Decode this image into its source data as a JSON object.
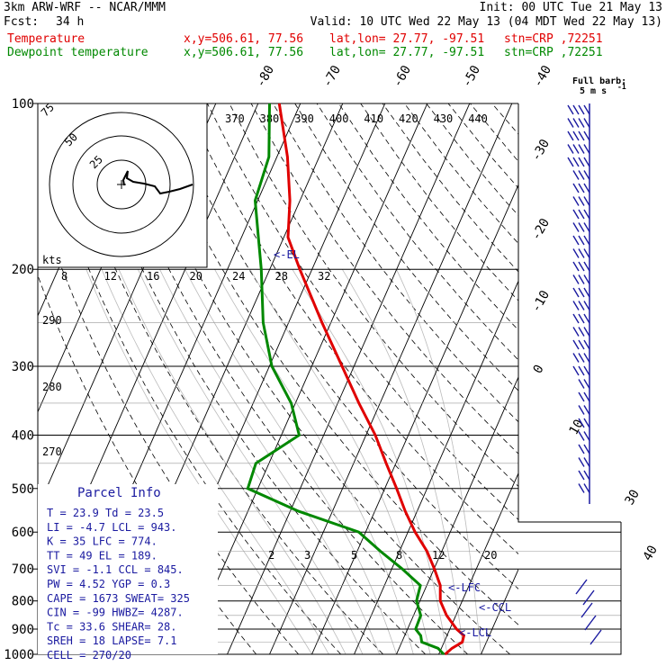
{
  "header": {
    "model": "3km ARW-WRF -- NCAR/MMM",
    "init": "Init: 00 UTC Tue 21 May 13",
    "fcst_label": "Fcst:",
    "fcst_value": "34 h",
    "valid": "Valid: 10 UTC Wed 22 May 13 (04 MDT Wed 22 May 13)",
    "temp_label": "Temperature",
    "dew_label": "Dewpoint temperature",
    "xy": "x,y=506.61, 77.56",
    "latlon": "lat,lon= 27.77, -97.51",
    "stn": "stn=CRP ,72251"
  },
  "barb_legend": {
    "line1": "Full barb:",
    "line2": "5 m s",
    "exp": "-1"
  },
  "hodograph": {
    "kts_label": "kts",
    "ring_labels": [
      "75",
      "50",
      "25"
    ]
  },
  "annotations": {
    "el": "<-EL",
    "lfc": "<-LFC",
    "ccl": "<-CCL",
    "lcl": "<-LCL"
  },
  "parcel_info": {
    "title": "Parcel Info",
    "rows": [
      "T   =   23.9  Td  = 23.5",
      "LI  =   -4.7  LCL =  943.",
      "K   =     35  LFC =  774.",
      "TT  =     49  EL  =  189.",
      "SVI =   -1.1  CCL =  845.",
      "PW  =   4.52  YGP =   0.3",
      "CAPE =  1673  SWEAT=  325",
      "CIN  =   -99  HWBZ= 4287.",
      "Tc  =   33.6  SHEAR=  28.",
      "SREH =    18  LAPSE=  7.1",
      "CELL = 270/20"
    ]
  },
  "chart_data": {
    "type": "line",
    "diagram": "skew-T log-p",
    "pressure_ticks": [
      "100",
      "200",
      "300",
      "400",
      "500",
      "600",
      "700",
      "800",
      "900",
      "1000"
    ],
    "isotherm_labels": [
      "-80",
      "-70",
      "-60",
      "-50",
      "-40",
      "-30",
      "-20",
      "-10",
      "0",
      "10",
      "30",
      "40"
    ],
    "theta_labels": [
      "370",
      "380",
      "390",
      "400",
      "410",
      "420",
      "430",
      "440"
    ],
    "theta_left_labels": [
      "290",
      "280",
      "270"
    ],
    "mixing_ratio_labels_top": [
      "8",
      "12",
      "16",
      "20",
      "24",
      "28",
      "32"
    ],
    "mixing_ratio_labels_bottom": [
      "2",
      "3",
      "5",
      "8",
      "12",
      "20"
    ],
    "series": [
      {
        "name": "Temperature",
        "color": "#e00000",
        "points": [
          {
            "p": 1000,
            "t": 21.5
          },
          {
            "p": 975,
            "t": 22.5
          },
          {
            "p": 950,
            "t": 24.3
          },
          {
            "p": 925,
            "t": 24.0
          },
          {
            "p": 900,
            "t": 21.6
          },
          {
            "p": 850,
            "t": 17.8
          },
          {
            "p": 800,
            "t": 14.8
          },
          {
            "p": 750,
            "t": 13.2
          },
          {
            "p": 700,
            "t": 10.1
          },
          {
            "p": 650,
            "t": 6.5
          },
          {
            "p": 600,
            "t": 1.7
          },
          {
            "p": 550,
            "t": -2.8
          },
          {
            "p": 500,
            "t": -7.2
          },
          {
            "p": 450,
            "t": -12.3
          },
          {
            "p": 400,
            "t": -17.8
          },
          {
            "p": 350,
            "t": -25.0
          },
          {
            "p": 300,
            "t": -32.8
          },
          {
            "p": 250,
            "t": -42.1
          },
          {
            "p": 200,
            "t": -52.9
          },
          {
            "p": 175,
            "t": -59.0
          },
          {
            "p": 150,
            "t": -62.4
          },
          {
            "p": 125,
            "t": -67.5
          },
          {
            "p": 100,
            "t": -75.0
          }
        ]
      },
      {
        "name": "Dewpoint temperature",
        "color": "#008800",
        "points": [
          {
            "p": 1000,
            "t": 21.2
          },
          {
            "p": 975,
            "t": 19.2
          },
          {
            "p": 950,
            "t": 14.7
          },
          {
            "p": 925,
            "t": 13.8
          },
          {
            "p": 900,
            "t": 11.9
          },
          {
            "p": 850,
            "t": 11.7
          },
          {
            "p": 800,
            "t": 9.2
          },
          {
            "p": 750,
            "t": 8.5
          },
          {
            "p": 700,
            "t": 2.5
          },
          {
            "p": 650,
            "t": -4.5
          },
          {
            "p": 600,
            "t": -11.6
          },
          {
            "p": 550,
            "t": -28.0
          },
          {
            "p": 500,
            "t": -42.4
          },
          {
            "p": 450,
            "t": -43.1
          },
          {
            "p": 400,
            "t": -35.8
          },
          {
            "p": 350,
            "t": -41.0
          },
          {
            "p": 300,
            "t": -49.4
          },
          {
            "p": 250,
            "t": -56.0
          },
          {
            "p": 200,
            "t": -62.0
          },
          {
            "p": 175,
            "t": -66.0
          },
          {
            "p": 150,
            "t": -70.6
          },
          {
            "p": 125,
            "t": -71.9
          },
          {
            "p": 100,
            "t": -77.3
          }
        ]
      }
    ],
    "xlabel": "",
    "ylabel": "",
    "grid": true
  }
}
